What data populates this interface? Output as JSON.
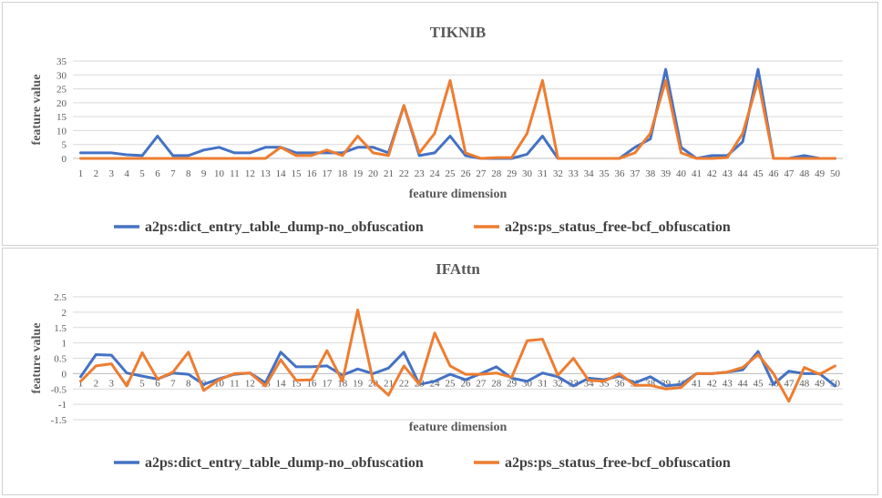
{
  "colors": {
    "series1": "#4472c4",
    "series2": "#ed7d31"
  },
  "chart_data": [
    {
      "type": "line",
      "title": "TIKNIB",
      "xlabel": "feature dimension",
      "ylabel": "feature value",
      "ylim": [
        0,
        35
      ],
      "yticks": [
        0,
        5,
        10,
        15,
        20,
        25,
        30,
        35
      ],
      "grid": true,
      "legend_position": "bottom",
      "categories": [
        "1",
        "2",
        "3",
        "4",
        "5",
        "6",
        "7",
        "8",
        "9",
        "10",
        "11",
        "12",
        "13",
        "14",
        "15",
        "16",
        "17",
        "18",
        "19",
        "20",
        "21",
        "22",
        "23",
        "24",
        "25",
        "26",
        "27",
        "28",
        "29",
        "30",
        "31",
        "32",
        "33",
        "34",
        "35",
        "36",
        "37",
        "38",
        "39",
        "40",
        "41",
        "42",
        "43",
        "44",
        "45",
        "46",
        "47",
        "48",
        "49",
        "50"
      ],
      "series": [
        {
          "name": "a2ps:dict_entry_table_dump-no_obfuscation",
          "values": [
            2,
            2,
            2,
            1.3,
            1,
            8,
            1,
            1,
            3,
            4,
            2,
            2,
            4,
            4,
            2,
            2,
            2,
            2,
            4,
            4,
            2,
            19,
            1,
            2,
            8,
            1,
            0,
            0,
            0,
            1.5,
            8,
            0,
            0,
            0,
            0,
            0,
            4,
            7,
            32,
            4,
            0,
            1,
            1,
            6,
            32,
            0,
            0,
            1,
            0,
            0
          ]
        },
        {
          "name": "a2ps:ps_status_free-bcf_obfuscation",
          "values": [
            0,
            0,
            0,
            0,
            0,
            0,
            0,
            0,
            0,
            0,
            0,
            0,
            0,
            4,
            1,
            1,
            3,
            1,
            8,
            2,
            1,
            19,
            2,
            9,
            28,
            2,
            0,
            0.3,
            0.3,
            9,
            28,
            0,
            0,
            0,
            0,
            0,
            2,
            9,
            28,
            2,
            0,
            0,
            0.3,
            9,
            28,
            0,
            0,
            0,
            0,
            0
          ]
        }
      ]
    },
    {
      "type": "line",
      "title": "IFAttn",
      "xlabel": "feature dimension",
      "ylabel": "feature value",
      "ylim": [
        -1.5,
        2.5
      ],
      "yticks": [
        -1.5,
        -1,
        -0.5,
        0,
        0.5,
        1,
        1.5,
        2,
        2.5
      ],
      "grid": true,
      "legend_position": "bottom",
      "categories": [
        "1",
        "2",
        "3",
        "4",
        "5",
        "6",
        "7",
        "8",
        "9",
        "10",
        "11",
        "12",
        "13",
        "14",
        "15",
        "16",
        "17",
        "18",
        "19",
        "20",
        "21",
        "22",
        "23",
        "24",
        "25",
        "26",
        "27",
        "28",
        "29",
        "30",
        "31",
        "32",
        "33",
        "34",
        "35",
        "36",
        "37",
        "38",
        "39",
        "40",
        "41",
        "42",
        "43",
        "44",
        "45",
        "46",
        "47",
        "48",
        "49",
        "50"
      ],
      "series": [
        {
          "name": "a2ps:dict_entry_table_dump-no_obfuscation",
          "values": [
            -0.1,
            0.62,
            0.6,
            0.02,
            -0.08,
            -0.18,
            0.02,
            -0.02,
            -0.35,
            -0.17,
            -0.02,
            0.02,
            -0.3,
            0.7,
            0.22,
            0.22,
            0.25,
            -0.05,
            0.15,
            0,
            0.18,
            0.7,
            -0.35,
            -0.25,
            -0.02,
            -0.2,
            0,
            0.22,
            -0.15,
            -0.25,
            0.02,
            -0.1,
            -0.4,
            -0.15,
            -0.2,
            -0.08,
            -0.3,
            -0.1,
            -0.4,
            -0.35,
            0,
            0,
            0.05,
            0.12,
            0.72,
            -0.35,
            0.08,
            0,
            0,
            -0.4
          ]
        },
        {
          "name": "a2ps:ps_status_free-bcf_obfuscation",
          "values": [
            -0.25,
            0.25,
            0.32,
            -0.4,
            0.68,
            -0.18,
            0.05,
            0.7,
            -0.55,
            -0.2,
            0,
            0.02,
            -0.4,
            0.45,
            -0.22,
            -0.2,
            0.75,
            -0.25,
            2.07,
            -0.25,
            -0.7,
            0.25,
            -0.35,
            1.32,
            0.25,
            -0.02,
            -0.02,
            0.02,
            -0.12,
            1.07,
            1.12,
            -0.05,
            0.5,
            -0.22,
            -0.25,
            0,
            -0.38,
            -0.38,
            -0.5,
            -0.45,
            0,
            0,
            0.05,
            0.2,
            0.62,
            0,
            -0.9,
            0.2,
            -0.02,
            0.25
          ]
        }
      ]
    }
  ]
}
